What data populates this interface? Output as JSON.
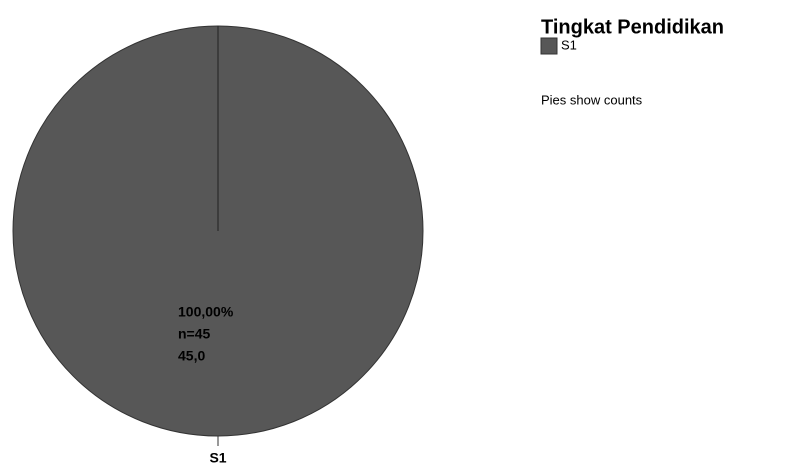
{
  "chart_data": {
    "type": "pie",
    "legend_title": "Tingkat Pendidikan",
    "categories": [
      "S1"
    ],
    "values": [
      45
    ],
    "value_labels": [
      "45,0"
    ],
    "count_labels": [
      "n=45"
    ],
    "percent_labels": [
      "100,00%"
    ],
    "colors": [
      "#575757"
    ],
    "note": "Pies show counts",
    "legend": "top-right"
  }
}
